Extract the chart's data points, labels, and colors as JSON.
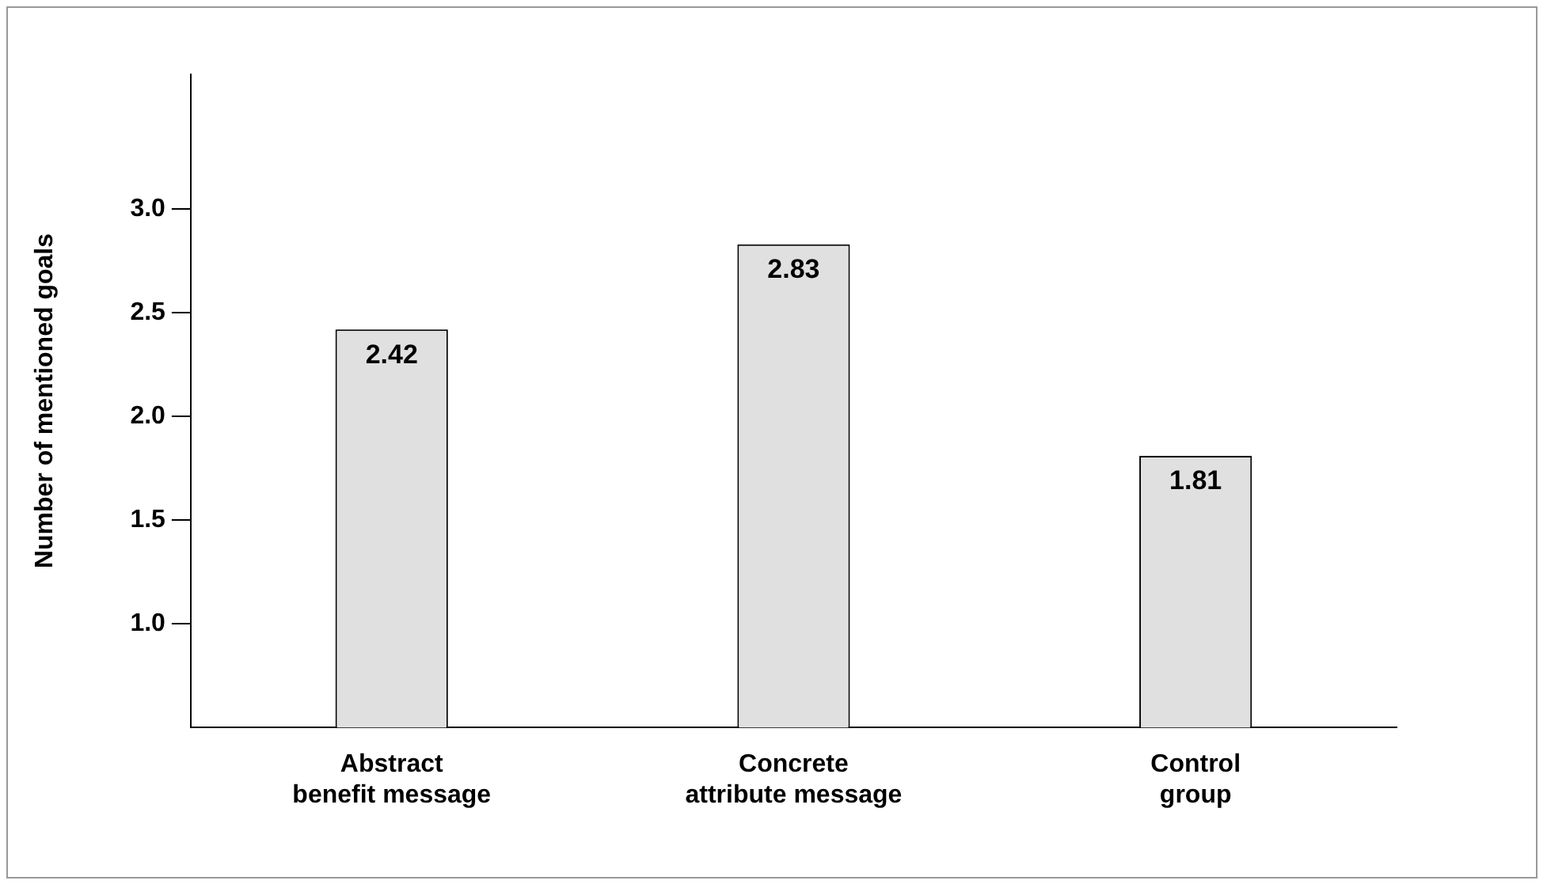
{
  "chart_data": {
    "type": "bar",
    "ylabel": "Number of mentioned goals",
    "categories": [
      "Abstract benefit message",
      "Concrete attribute message",
      "Control group"
    ],
    "values": [
      2.42,
      2.83,
      1.81
    ],
    "color": "#e0e0e0",
    "ylim": [
      0.5,
      3.65
    ],
    "yticks": [
      {
        "value": 1,
        "label": "1.0"
      },
      {
        "value": 1.5,
        "label": "1.5"
      },
      {
        "value": 2,
        "label": "2.0"
      },
      {
        "value": 2.5,
        "label": "2.5"
      },
      {
        "value": 3,
        "label": "3.0"
      }
    ],
    "grid": false,
    "legend": false,
    "data_labels": true
  }
}
